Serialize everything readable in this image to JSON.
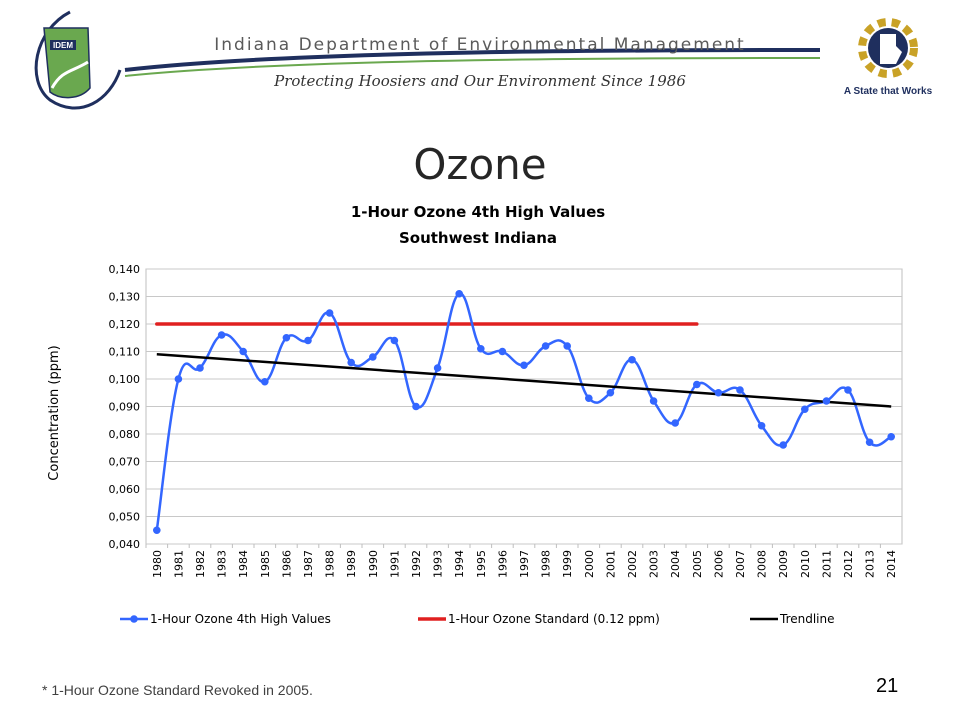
{
  "header": {
    "org_name": "Indiana Department of Environmental Management",
    "tagline": "Protecting Hoosiers and Our Environment Since 1986",
    "left_logo_text": "IDEM",
    "right_logo_text": "A State that Works",
    "colors": {
      "navy": "#1f2f5e",
      "green": "#6aa84f",
      "gold": "#c9a227",
      "gray": "#5a5a5a"
    },
    "icons": [
      "idem-indiana-logo-icon",
      "state-gear-logo-icon"
    ]
  },
  "page": {
    "title": "Ozone",
    "footnote": "* 1-Hour Ozone Standard Revoked in 2005.",
    "page_number": "21"
  },
  "chart_data": {
    "type": "line",
    "title": "1-Hour Ozone 4th High Values",
    "subtitle": "Southwest Indiana",
    "xlabel": "",
    "ylabel": "Concentration (ppm)",
    "ylim": [
      0.04,
      0.14
    ],
    "y_ticks": [
      "0,040",
      "0,050",
      "0,060",
      "0,070",
      "0,080",
      "0,090",
      "0,100",
      "0,110",
      "0,120",
      "0,130",
      "0,140"
    ],
    "grid": true,
    "legend_position": "bottom",
    "categories": [
      "1980",
      "1981",
      "1982",
      "1983",
      "1984",
      "1985",
      "1986",
      "1987",
      "1988",
      "1989",
      "1990",
      "1991",
      "1992",
      "1993",
      "1994",
      "1995",
      "1996",
      "1997",
      "1998",
      "1999",
      "2000",
      "2001",
      "2002",
      "2003",
      "2004",
      "2005",
      "2006",
      "2007",
      "2008",
      "2009",
      "2010",
      "2011",
      "2012",
      "2013",
      "2014"
    ],
    "series": [
      {
        "name": "1-Hour Ozone  4th High Values",
        "color": "#3366ff",
        "marker": "circle",
        "smooth": true,
        "values": [
          0.045,
          0.1,
          0.104,
          0.116,
          0.11,
          0.099,
          0.115,
          0.114,
          0.124,
          0.106,
          0.108,
          0.114,
          0.09,
          0.104,
          0.131,
          0.111,
          0.11,
          0.105,
          0.112,
          0.112,
          0.093,
          0.095,
          0.107,
          0.092,
          0.084,
          0.098,
          0.095,
          0.096,
          0.083,
          0.076,
          0.089,
          0.092,
          0.096,
          0.077,
          0.079
        ]
      },
      {
        "name": "1-Hour Ozone Standard (0.12 ppm)",
        "color": "#e02020",
        "start": "1980",
        "end": "2005",
        "value": 0.12
      },
      {
        "name": "Trendline",
        "color": "#000000",
        "start": "1980",
        "end": "2014",
        "values_at_ends": [
          0.109,
          0.09
        ]
      }
    ]
  }
}
